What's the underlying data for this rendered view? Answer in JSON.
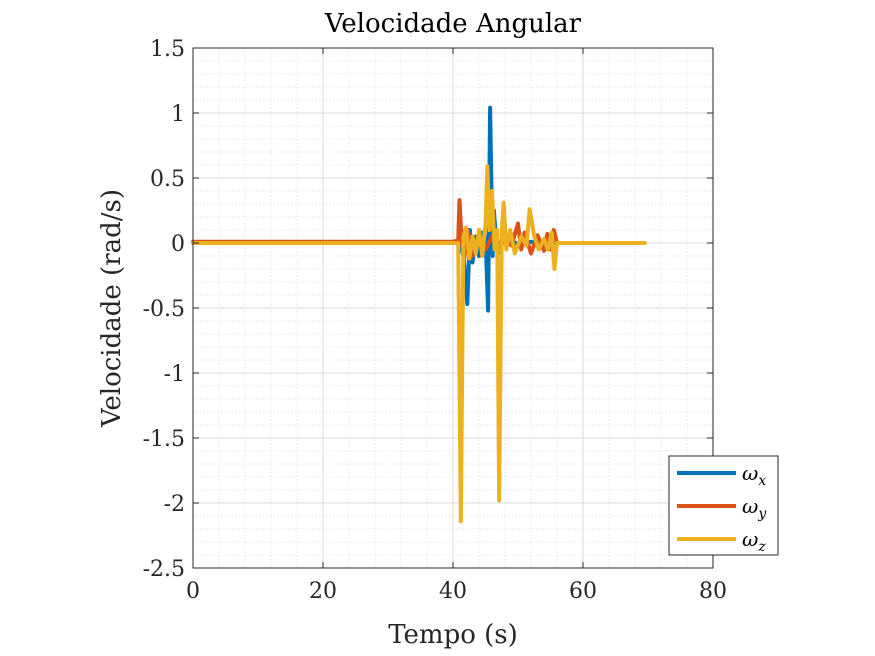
{
  "chart_data": {
    "type": "line",
    "title": "Velocidade Angular",
    "xlabel": "Tempo (s)",
    "ylabel": "Velocidade (rad/s)",
    "xlim": [
      0,
      80
    ],
    "ylim": [
      -2.5,
      1.5
    ],
    "xticks": [
      0,
      20,
      40,
      60,
      80
    ],
    "xtick_labels": [
      "0",
      "20",
      "40",
      "60",
      "80"
    ],
    "yticks": [
      1.5,
      1,
      0.5,
      0,
      -0.5,
      -1,
      -1.5,
      -2,
      -2.5
    ],
    "ytick_labels": [
      "1.5",
      "1",
      "0.5",
      "0",
      "-0.5",
      "-1",
      "-1.5",
      "-2",
      "-2.5"
    ],
    "grid": true,
    "minor_grid": true,
    "legend_position": "bottom-right-outside",
    "series": [
      {
        "name": "ωx",
        "label_base": "ω",
        "label_sub": "x",
        "color": "#0072BD",
        "x": [
          0,
          40,
          41,
          41.6,
          42.2,
          42.6,
          43.0,
          43.5,
          44.0,
          44.5,
          45.0,
          45.4,
          45.7,
          45.9,
          46.1,
          46.3,
          46.6,
          47.0,
          47.5,
          48.0,
          49.0,
          50.0,
          52.0,
          54.0,
          56.0,
          60.0
        ],
        "y": [
          0,
          0,
          0.01,
          -0.1,
          -0.47,
          0.1,
          -0.15,
          0.05,
          -0.1,
          0.08,
          0.05,
          -0.52,
          1.04,
          0.5,
          -0.1,
          0.25,
          0.05,
          -0.08,
          0.03,
          0.0,
          0.02,
          -0.01,
          0.01,
          0.0,
          0.0,
          0.0
        ]
      },
      {
        "name": "ωy",
        "label_base": "ω",
        "label_sub": "y",
        "color": "#D95319",
        "x": [
          0,
          40,
          40.8,
          41.0,
          41.3,
          41.7,
          42.3,
          43.0,
          44.0,
          45.0,
          46.0,
          47.0,
          48.0,
          49.0,
          50.0,
          50.5,
          51.0,
          52.0,
          53.0,
          54.0,
          54.5,
          55.0,
          55.5,
          56.0,
          60.0
        ],
        "y": [
          0.01,
          0.01,
          0.02,
          0.33,
          0.05,
          -0.12,
          0.1,
          -0.1,
          0.08,
          -0.05,
          0.05,
          -0.05,
          0.03,
          -0.02,
          0.15,
          -0.05,
          0.08,
          -0.08,
          0.06,
          -0.06,
          0.07,
          -0.05,
          0.1,
          0.0,
          0.0
        ]
      },
      {
        "name": "ωz",
        "label_base": "ω",
        "label_sub": "z",
        "color": "#EDB120",
        "x": [
          0,
          40,
          40.8,
          41.2,
          41.6,
          42.0,
          42.5,
          43.0,
          43.5,
          44.0,
          44.5,
          45.0,
          45.3,
          45.6,
          46.0,
          46.4,
          46.8,
          47.1,
          47.5,
          47.8,
          48.2,
          48.8,
          49.5,
          50.5,
          51.3,
          51.8,
          52.5,
          53.2,
          54.0,
          54.6,
          55.2,
          55.6,
          56.0,
          60.0,
          69.5
        ],
        "y": [
          0,
          0,
          0.0,
          -2.14,
          0.05,
          0.12,
          -0.12,
          0.05,
          -0.08,
          0.1,
          -0.1,
          0.15,
          0.59,
          0.1,
          0.4,
          -0.05,
          0.1,
          -1.98,
          0.1,
          0.31,
          -0.05,
          0.1,
          -0.08,
          0.05,
          -0.02,
          0.26,
          0.05,
          -0.05,
          0.03,
          -0.05,
          0.08,
          -0.2,
          0.0,
          0.0,
          0.0
        ]
      }
    ]
  }
}
